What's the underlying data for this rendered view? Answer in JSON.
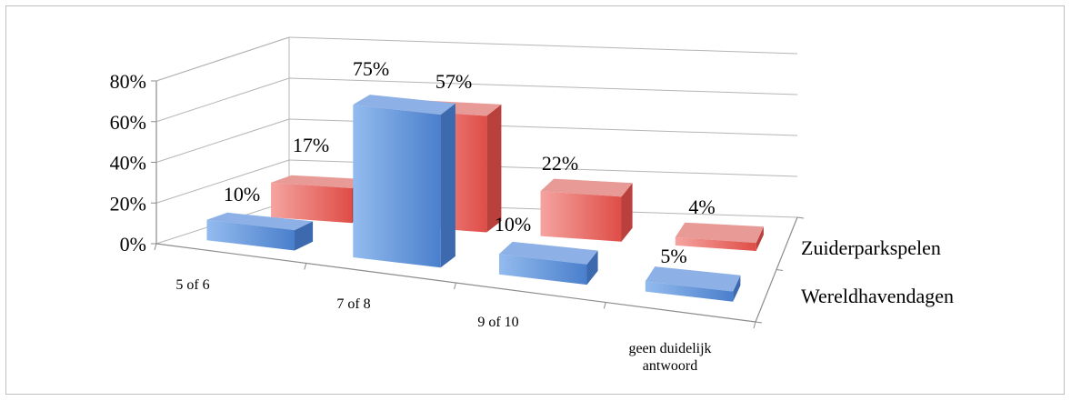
{
  "chart_data": {
    "type": "bar",
    "subtype": "3d-clustered-column",
    "title": "",
    "xlabel": "",
    "ylabel": "",
    "categories": [
      "5 of 6",
      "7 of 8",
      "9 of 10",
      "geen duidelijk antwoord"
    ],
    "category_lines": [
      [
        "5 of 6"
      ],
      [
        "7 of 8"
      ],
      [
        "9 of 10"
      ],
      [
        "geen duidelijk",
        "antwoord"
      ]
    ],
    "series": [
      {
        "name": "Wereldhavendagen",
        "values": [
          0.1,
          0.75,
          0.1,
          0.05
        ],
        "labels": [
          "10%",
          "75%",
          "10%",
          "5%"
        ],
        "color": "#5b8fd6"
      },
      {
        "name": "Zuiderparkspelen",
        "values": [
          0.17,
          0.57,
          0.22,
          0.04
        ],
        "labels": [
          "17%",
          "57%",
          "22%",
          "4%"
        ],
        "color": "#e8605a"
      }
    ],
    "ylim": [
      0,
      0.8
    ],
    "yticks": [
      "0%",
      "20%",
      "40%",
      "60%",
      "80%"
    ],
    "grid": true,
    "legend": "depth-axis-right"
  }
}
